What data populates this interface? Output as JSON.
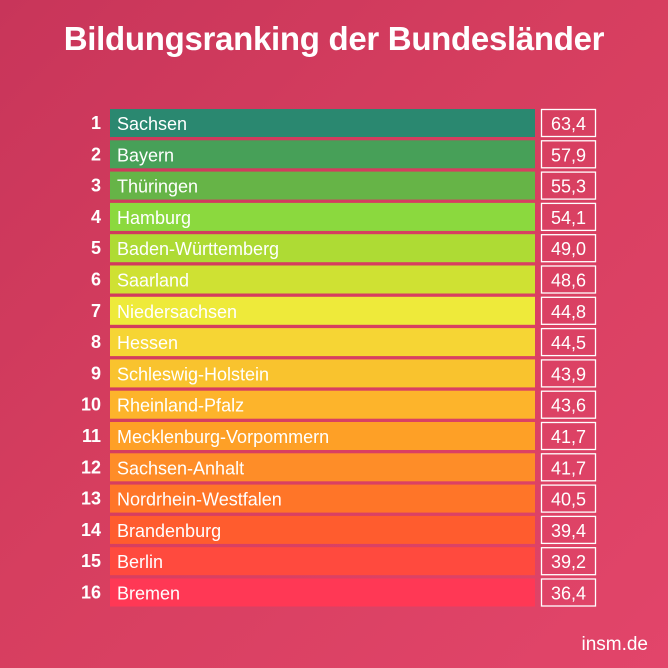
{
  "title": "Bildungsranking der Bundesländer",
  "footer": "insm.de",
  "chart_data": {
    "type": "bar",
    "title": "Bildungsranking der Bundesländer",
    "orientation": "horizontal",
    "ranks": [
      "1",
      "2",
      "3",
      "4",
      "5",
      "6",
      "7",
      "8",
      "9",
      "10",
      "11",
      "12",
      "13",
      "14",
      "15",
      "16"
    ],
    "categories": [
      "Sachsen",
      "Bayern",
      "Thüringen",
      "Hamburg",
      "Baden-Württemberg",
      "Saarland",
      "Niedersachsen",
      "Hessen",
      "Schleswig-Holstein",
      "Rheinland-Pfalz",
      "Mecklenburg-Vorpommern",
      "Sachsen-Anhalt",
      "Nordrhein-Westfalen",
      "Brandenburg",
      "Berlin",
      "Bremen"
    ],
    "values": [
      63.4,
      57.9,
      55.3,
      54.1,
      49.0,
      48.6,
      44.8,
      44.5,
      43.9,
      43.6,
      41.7,
      41.7,
      40.5,
      39.4,
      39.2,
      36.4
    ],
    "value_labels": [
      "63,4",
      "57,9",
      "55,3",
      "54,1",
      "49,0",
      "48,6",
      "44,8",
      "44,5",
      "43,9",
      "43,6",
      "41,7",
      "41,7",
      "40,5",
      "39,4",
      "39,2",
      "36,4"
    ],
    "colors": [
      "#2a8870",
      "#47a058",
      "#66b447",
      "#8bd93e",
      "#aedb34",
      "#cfe133",
      "#eeea3a",
      "#f6d534",
      "#f9c32e",
      "#fdb42b",
      "#fea026",
      "#fe8d28",
      "#ff7528",
      "#ff5c2e",
      "#ff4a3e",
      "#ff3855"
    ],
    "label_color": "#ffffff"
  }
}
